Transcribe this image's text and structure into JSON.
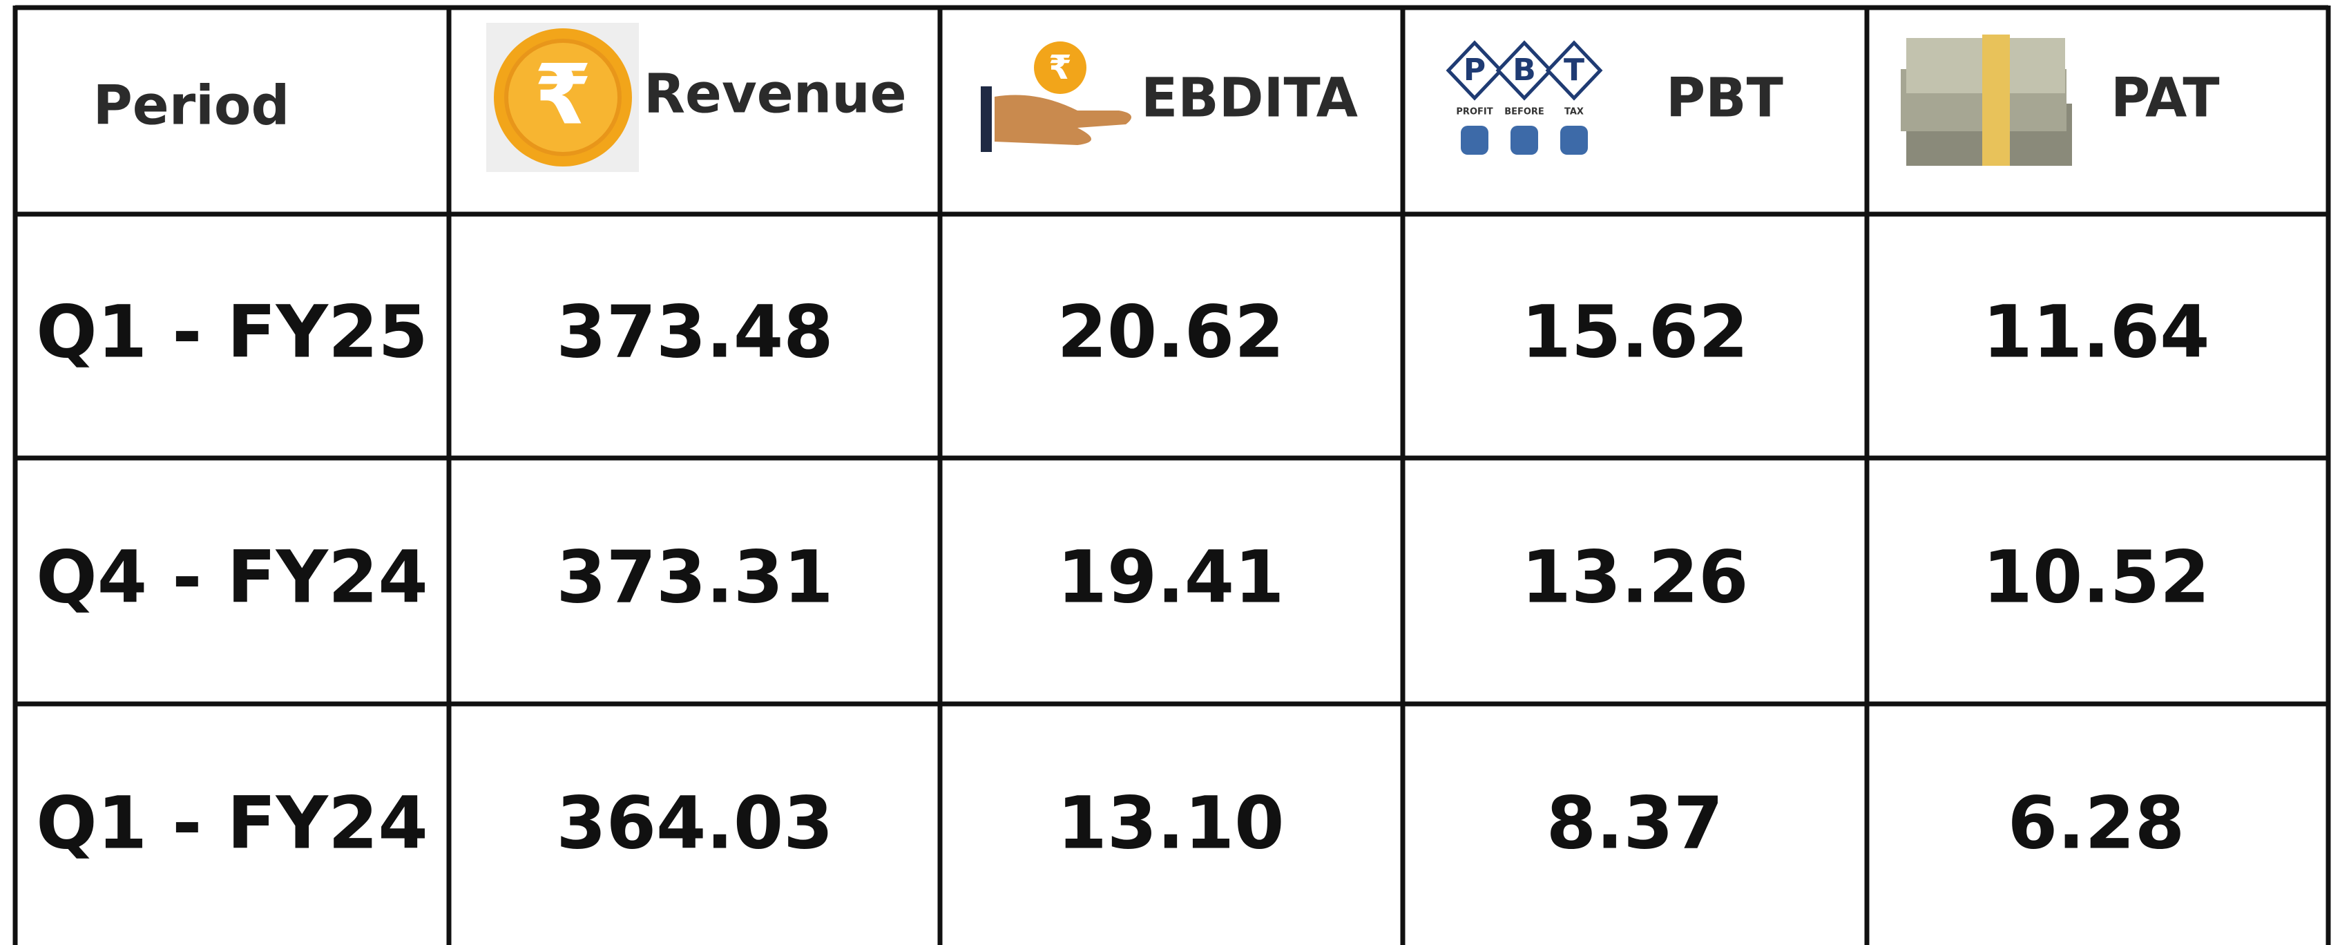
{
  "header": {
    "columns": [
      "Period",
      "Revenue",
      "EBDITA",
      "PBT",
      "PAT"
    ],
    "currency_symbol": "₹",
    "pbt_icon": {
      "letters": [
        "P",
        "B",
        "T"
      ],
      "captions": [
        "PROFIT",
        "BEFORE",
        "TAX"
      ]
    }
  },
  "table": {
    "rows": [
      [
        "Q1 - FY25",
        "373.48",
        "20.62",
        "15.62",
        "11.64"
      ],
      [
        "Q4 - FY24",
        "373.31",
        "19.41",
        "13.26",
        "10.52"
      ],
      [
        "Q1 - FY24",
        "364.03",
        "13.10",
        "8.37",
        "6.28"
      ]
    ]
  }
}
